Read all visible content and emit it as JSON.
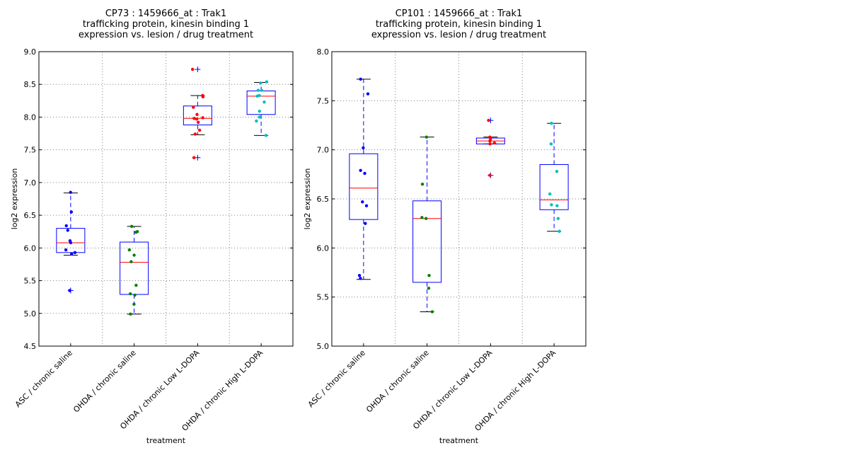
{
  "chart_data": [
    {
      "type": "box",
      "title_lines": [
        "CP73 : 1459666_at : Trak1",
        "trafficking protein, kinesin binding 1",
        "expression vs. lesion / drug treatment"
      ],
      "xlabel": "treatment",
      "ylabel": "log2 expression",
      "ylim": [
        4.5,
        9.0
      ],
      "yticks": [
        "4.5",
        "5.0",
        "5.5",
        "6.0",
        "6.5",
        "7.0",
        "7.5",
        "8.0",
        "8.5",
        "9.0"
      ],
      "grid": true,
      "categories": [
        "ASC / chronic saline",
        "OHDA / chronic saline",
        "OHDA / chronic Low L-DOPA",
        "OHDA / chronic High L-DOPA"
      ],
      "colors": [
        "#0000ff",
        "#008000",
        "#ff0000",
        "#00bfbf"
      ],
      "boxes": [
        {
          "q1": 5.93,
          "median": 6.08,
          "q3": 6.3,
          "whisker_low": 5.89,
          "whisker_high": 6.84,
          "outliers": [
            5.35
          ],
          "points": [
            6.85,
            6.55,
            6.34,
            6.27,
            6.11,
            6.08,
            5.97,
            5.93,
            5.91,
            5.35
          ]
        },
        {
          "q1": 5.29,
          "median": 5.78,
          "q3": 6.09,
          "whisker_low": 4.99,
          "whisker_high": 6.33,
          "outliers": [],
          "points": [
            6.33,
            6.25,
            6.24,
            5.97,
            5.89,
            5.79,
            5.43,
            5.3,
            5.28,
            5.14,
            4.99
          ]
        },
        {
          "q1": 7.88,
          "median": 7.98,
          "q3": 8.17,
          "whisker_low": 7.73,
          "whisker_high": 8.33,
          "outliers": [
            8.73,
            7.38
          ],
          "points": [
            8.73,
            8.33,
            8.31,
            8.15,
            8.04,
            7.99,
            7.98,
            7.97,
            7.92,
            7.8,
            7.74,
            7.38
          ]
        },
        {
          "q1": 8.04,
          "median": 8.32,
          "q3": 8.4,
          "whisker_low": 7.72,
          "whisker_high": 8.53,
          "outliers": [],
          "points": [
            8.54,
            8.52,
            8.41,
            8.41,
            8.33,
            8.32,
            8.23,
            8.09,
            8.0,
            7.94,
            7.72
          ]
        }
      ]
    },
    {
      "type": "box",
      "title_lines": [
        "CP101 : 1459666_at : Trak1",
        "trafficking protein, kinesin binding 1",
        "expression vs. lesion / drug treatment"
      ],
      "xlabel": "treatment",
      "ylabel": "log2 expression",
      "ylim": [
        5.0,
        8.0
      ],
      "yticks": [
        "5.0",
        "5.5",
        "6.0",
        "6.5",
        "7.0",
        "7.5",
        "8.0"
      ],
      "grid": true,
      "categories": [
        "ASC / chronic saline",
        "OHDA / chronic saline",
        "OHDA / chronic Low L-DOPA",
        "OHDA / chronic High L-DOPA"
      ],
      "colors": [
        "#0000ff",
        "#008000",
        "#ff0000",
        "#00bfbf"
      ],
      "boxes": [
        {
          "q1": 6.29,
          "median": 6.61,
          "q3": 6.96,
          "whisker_low": 5.68,
          "whisker_high": 7.72,
          "outliers": [],
          "points": [
            7.72,
            7.57,
            7.02,
            6.79,
            6.76,
            6.47,
            6.43,
            6.25,
            5.72,
            5.69
          ]
        },
        {
          "q1": 5.65,
          "median": 6.3,
          "q3": 6.48,
          "whisker_low": 5.35,
          "whisker_high": 7.13,
          "outliers": [],
          "points": [
            7.13,
            6.65,
            6.31,
            6.3,
            5.72,
            5.59,
            5.35
          ]
        },
        {
          "q1": 7.06,
          "median": 7.09,
          "q3": 7.12,
          "whisker_low": 7.06,
          "whisker_high": 7.13,
          "outliers": [
            7.3,
            6.74
          ],
          "points": [
            7.3,
            7.13,
            7.11,
            7.09,
            7.07,
            7.06,
            6.74
          ]
        },
        {
          "q1": 6.39,
          "median": 6.49,
          "q3": 6.85,
          "whisker_low": 6.17,
          "whisker_high": 7.27,
          "outliers": [],
          "points": [
            7.27,
            7.06,
            6.78,
            6.55,
            6.44,
            6.43,
            6.3,
            6.17
          ]
        }
      ]
    }
  ]
}
